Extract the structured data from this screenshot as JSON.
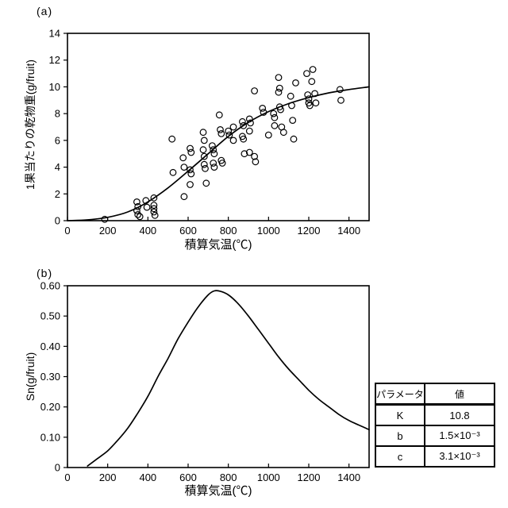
{
  "panels": {
    "a_label": "(a)",
    "b_label": "(b)"
  },
  "chart_data": [
    {
      "id": "a",
      "type": "scatter",
      "xlabel": "積算気温(℃)",
      "ylabel": "1果当たりの乾物重(g/fruit)",
      "xlim": [
        0,
        1500
      ],
      "ylim": [
        0,
        14
      ],
      "xticks": [
        0,
        200,
        400,
        600,
        800,
        1000,
        1200,
        1400
      ],
      "yticks": [
        0,
        2,
        4,
        6,
        8,
        10,
        12,
        14
      ],
      "ytick_labels": [
        "0",
        "2",
        "4",
        "6",
        "8",
        "10",
        "12",
        "14"
      ],
      "grid": false,
      "legend": "none",
      "marker": "open-circle",
      "fit_curve": [
        [
          0,
          0
        ],
        [
          100,
          0.06
        ],
        [
          200,
          0.25
        ],
        [
          300,
          0.65
        ],
        [
          400,
          1.4
        ],
        [
          500,
          2.45
        ],
        [
          600,
          3.7
        ],
        [
          700,
          5.0
        ],
        [
          800,
          6.3
        ],
        [
          900,
          7.35
        ],
        [
          1000,
          8.15
        ],
        [
          1100,
          8.75
        ],
        [
          1200,
          9.2
        ],
        [
          1300,
          9.55
        ],
        [
          1400,
          9.8
        ],
        [
          1500,
          10.0
        ]
      ],
      "points": [
        [
          185,
          0.1
        ],
        [
          345,
          1.4
        ],
        [
          350,
          1.05
        ],
        [
          345,
          0.75
        ],
        [
          350,
          0.45
        ],
        [
          360,
          0.3
        ],
        [
          390,
          1.5
        ],
        [
          395,
          1.0
        ],
        [
          430,
          1.7
        ],
        [
          430,
          1.15
        ],
        [
          430,
          0.9
        ],
        [
          430,
          0.65
        ],
        [
          435,
          0.4
        ],
        [
          520,
          6.1
        ],
        [
          525,
          3.6
        ],
        [
          575,
          4.7
        ],
        [
          580,
          4.0
        ],
        [
          580,
          1.8
        ],
        [
          610,
          5.4
        ],
        [
          615,
          5.1
        ],
        [
          610,
          3.8
        ],
        [
          615,
          3.5
        ],
        [
          610,
          2.7
        ],
        [
          675,
          6.6
        ],
        [
          680,
          6.0
        ],
        [
          675,
          5.3
        ],
        [
          680,
          4.8
        ],
        [
          680,
          4.2
        ],
        [
          685,
          3.9
        ],
        [
          690,
          2.8
        ],
        [
          720,
          5.6
        ],
        [
          725,
          5.3
        ],
        [
          730,
          5.0
        ],
        [
          725,
          4.3
        ],
        [
          730,
          4.0
        ],
        [
          755,
          7.9
        ],
        [
          760,
          6.8
        ],
        [
          765,
          6.5
        ],
        [
          765,
          4.5
        ],
        [
          770,
          4.3
        ],
        [
          800,
          6.7
        ],
        [
          805,
          6.4
        ],
        [
          825,
          7.0
        ],
        [
          825,
          6.0
        ],
        [
          870,
          7.4
        ],
        [
          875,
          7.1
        ],
        [
          870,
          6.3
        ],
        [
          875,
          6.1
        ],
        [
          880,
          5.0
        ],
        [
          905,
          7.6
        ],
        [
          910,
          7.3
        ],
        [
          905,
          6.7
        ],
        [
          905,
          5.1
        ],
        [
          930,
          9.7
        ],
        [
          930,
          4.8
        ],
        [
          935,
          4.4
        ],
        [
          970,
          8.4
        ],
        [
          975,
          8.1
        ],
        [
          1000,
          6.4
        ],
        [
          1025,
          8.0
        ],
        [
          1030,
          7.7
        ],
        [
          1030,
          7.1
        ],
        [
          1050,
          10.7
        ],
        [
          1055,
          9.9
        ],
        [
          1050,
          9.6
        ],
        [
          1055,
          8.5
        ],
        [
          1060,
          8.3
        ],
        [
          1065,
          7.0
        ],
        [
          1075,
          6.6
        ],
        [
          1110,
          9.3
        ],
        [
          1115,
          8.6
        ],
        [
          1120,
          7.5
        ],
        [
          1125,
          6.1
        ],
        [
          1135,
          10.3
        ],
        [
          1190,
          11.0
        ],
        [
          1195,
          9.4
        ],
        [
          1200,
          9.1
        ],
        [
          1200,
          8.8
        ],
        [
          1205,
          8.6
        ],
        [
          1220,
          11.3
        ],
        [
          1215,
          10.4
        ],
        [
          1230,
          9.5
        ],
        [
          1235,
          8.8
        ],
        [
          1355,
          9.8
        ],
        [
          1360,
          9.0
        ]
      ]
    },
    {
      "id": "b",
      "type": "line",
      "xlabel": "積算気温(℃)",
      "ylabel": "Sn(g/fruit)",
      "xlim": [
        0,
        1500
      ],
      "ylim": [
        0,
        0.6
      ],
      "xticks": [
        0,
        200,
        400,
        600,
        800,
        1000,
        1200,
        1400
      ],
      "yticks": [
        0,
        0.1,
        0.2,
        0.3,
        0.4,
        0.5,
        0.6
      ],
      "ytick_labels": [
        "0",
        "0.10",
        "0.20",
        "0.30",
        "0.40",
        "0.50",
        "0.60"
      ],
      "grid": false,
      "legend": "none",
      "curve": [
        [
          100,
          0.005
        ],
        [
          150,
          0.03
        ],
        [
          200,
          0.055
        ],
        [
          250,
          0.09
        ],
        [
          300,
          0.13
        ],
        [
          350,
          0.18
        ],
        [
          400,
          0.235
        ],
        [
          450,
          0.3
        ],
        [
          500,
          0.36
        ],
        [
          550,
          0.425
        ],
        [
          600,
          0.48
        ],
        [
          650,
          0.53
        ],
        [
          700,
          0.57
        ],
        [
          730,
          0.583
        ],
        [
          760,
          0.582
        ],
        [
          800,
          0.57
        ],
        [
          850,
          0.54
        ],
        [
          900,
          0.5
        ],
        [
          950,
          0.455
        ],
        [
          1000,
          0.41
        ],
        [
          1050,
          0.365
        ],
        [
          1100,
          0.325
        ],
        [
          1150,
          0.29
        ],
        [
          1200,
          0.255
        ],
        [
          1250,
          0.225
        ],
        [
          1300,
          0.2
        ],
        [
          1350,
          0.175
        ],
        [
          1400,
          0.155
        ],
        [
          1450,
          0.14
        ],
        [
          1500,
          0.125
        ]
      ],
      "peak": {
        "x": 730,
        "y": 0.583
      }
    }
  ],
  "table": {
    "headers": [
      "パラメータ",
      "値"
    ],
    "rows": [
      [
        "K",
        "10.8"
      ],
      [
        "b",
        "1.5×10⁻³"
      ],
      [
        "c",
        "3.1×10⁻³"
      ]
    ]
  }
}
